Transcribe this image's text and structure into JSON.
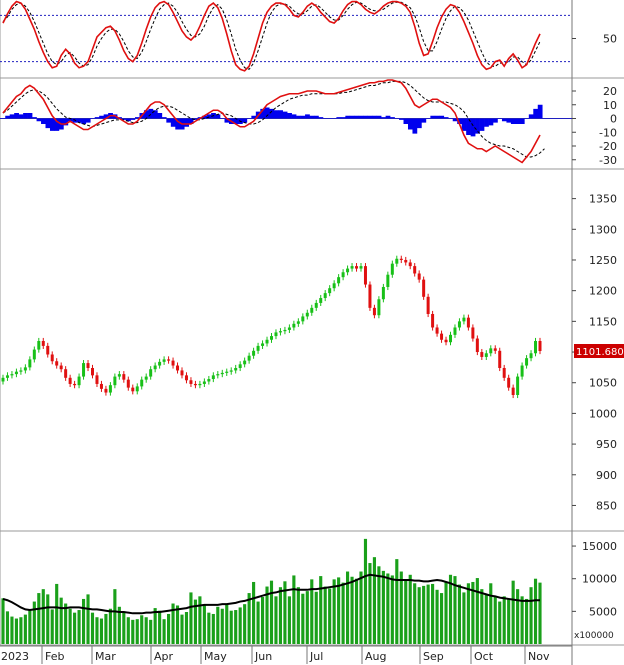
{
  "colors": {
    "up_candle": "#18c018",
    "down_candle": "#e01010",
    "volume_bar": "#1aa01a",
    "volume_ma": "#000000",
    "stoch_line": "#e01010",
    "macd_hist": "#0000ee",
    "macd_line": "#e01010",
    "signal_line": "#000000",
    "ref_line": "#2020c0",
    "price_tag_bg": "#cc0000",
    "price_tag_text": "#ffffff"
  },
  "x_axis": {
    "year_label": "2023",
    "months": [
      "Feb",
      "Mar",
      "Apr",
      "May",
      "Jun",
      "Jul",
      "Aug",
      "Sep",
      "Oct",
      "Nov"
    ]
  },
  "chart_data": [
    {
      "type": "line",
      "panel": "stochastic",
      "ylim": [
        0,
        100
      ],
      "ticks": [
        50
      ],
      "reference_levels": [
        20,
        80
      ],
      "series": [
        {
          "role": "k",
          "values": [
            70,
            82,
            92,
            98,
            96,
            88,
            75,
            62,
            46,
            32,
            20,
            12,
            14,
            28,
            36,
            30,
            18,
            12,
            14,
            20,
            36,
            52,
            58,
            64,
            66,
            60,
            48,
            34,
            24,
            20,
            28,
            44,
            62,
            78,
            90,
            96,
            98,
            94,
            84,
            72,
            60,
            52,
            48,
            54,
            66,
            80,
            92,
            96,
            90,
            76,
            56,
            34,
            16,
            10,
            8,
            14,
            30,
            50,
            70,
            84,
            92,
            96,
            96,
            94,
            88,
            80,
            78,
            84,
            92,
            96,
            92,
            84,
            78,
            72,
            70,
            76,
            86,
            94,
            98,
            98,
            94,
            88,
            84,
            82,
            86,
            92,
            96,
            98,
            98,
            96,
            92,
            84,
            66,
            44,
            28,
            30,
            46,
            64,
            78,
            88,
            94,
            92,
            84,
            72,
            58,
            44,
            28,
            16,
            10,
            12,
            20,
            22,
            14,
            24,
            30,
            22,
            12,
            16,
            30,
            44,
            56
          ]
        },
        {
          "role": "d",
          "values": [
            72,
            78,
            88,
            94,
            96,
            92,
            84,
            72,
            58,
            44,
            30,
            20,
            16,
            20,
            28,
            32,
            26,
            18,
            14,
            16,
            26,
            40,
            50,
            58,
            62,
            62,
            56,
            46,
            34,
            26,
            24,
            32,
            46,
            62,
            76,
            88,
            94,
            96,
            92,
            84,
            72,
            62,
            54,
            52,
            56,
            66,
            80,
            90,
            94,
            88,
            74,
            56,
            36,
            22,
            12,
            10,
            18,
            34,
            52,
            70,
            84,
            92,
            95,
            95,
            92,
            86,
            82,
            82,
            86,
            92,
            94,
            90,
            84,
            78,
            74,
            74,
            80,
            88,
            94,
            97,
            96,
            92,
            88,
            86,
            86,
            88,
            92,
            96,
            97,
            97,
            94,
            90,
            80,
            64,
            46,
            34,
            34,
            46,
            62,
            76,
            86,
            92,
            90,
            84,
            74,
            60,
            46,
            32,
            20,
            14,
            14,
            18,
            18,
            20,
            26,
            26,
            20,
            16,
            22,
            34,
            46
          ]
        }
      ]
    },
    {
      "type": "bar",
      "panel": "macd",
      "ylim": [
        -36,
        28
      ],
      "ticks": [
        20,
        10,
        0,
        -10,
        -20,
        -30
      ],
      "series": [
        {
          "role": "macd",
          "values": [
            4,
            8,
            12,
            16,
            18,
            22,
            24,
            22,
            18,
            14,
            8,
            2,
            -2,
            -4,
            -4,
            -2,
            -4,
            -6,
            -8,
            -8,
            -6,
            -4,
            -2,
            0,
            2,
            2,
            0,
            -2,
            -4,
            -4,
            -2,
            2,
            6,
            10,
            12,
            12,
            10,
            6,
            2,
            -2,
            -4,
            -4,
            -4,
            -2,
            0,
            2,
            4,
            6,
            6,
            4,
            0,
            -2,
            -4,
            -6,
            -6,
            -4,
            -2,
            2,
            6,
            10,
            12,
            14,
            16,
            17,
            18,
            18,
            18,
            19,
            20,
            20,
            20,
            19,
            18,
            18,
            18,
            19,
            20,
            21,
            22,
            23,
            24,
            25,
            26,
            26,
            27,
            27,
            28,
            28,
            27,
            26,
            22,
            16,
            10,
            8,
            10,
            12,
            14,
            14,
            12,
            10,
            8,
            4,
            -4,
            -12,
            -18,
            -20,
            -22,
            -22,
            -24,
            -22,
            -20,
            -22,
            -24,
            -26,
            -28,
            -30,
            -32,
            -28,
            -24,
            -18,
            -12
          ]
        },
        {
          "role": "signal",
          "values": [
            4,
            6,
            9,
            12,
            15,
            18,
            20,
            21,
            20,
            18,
            15,
            11,
            7,
            4,
            1,
            0,
            -1,
            -3,
            -4,
            -5,
            -6,
            -5,
            -4,
            -3,
            -2,
            -1,
            -1,
            -1,
            -2,
            -3,
            -3,
            -2,
            0,
            3,
            6,
            8,
            9,
            9,
            8,
            6,
            4,
            2,
            0,
            -1,
            -1,
            0,
            1,
            2,
            3,
            4,
            3,
            2,
            0,
            -2,
            -3,
            -4,
            -4,
            -3,
            -1,
            2,
            5,
            8,
            10,
            12,
            14,
            15,
            16,
            17,
            17,
            18,
            18,
            18,
            18,
            18,
            18,
            18,
            19,
            19,
            20,
            21,
            22,
            23,
            24,
            24,
            25,
            26,
            26,
            27,
            27,
            27,
            26,
            24,
            21,
            18,
            15,
            13,
            12,
            12,
            12,
            12,
            11,
            10,
            8,
            5,
            0,
            -5,
            -9,
            -13,
            -16,
            -18,
            -19,
            -20,
            -20,
            -21,
            -22,
            -24,
            -26,
            -28,
            -28,
            -27,
            -25,
            -22
          ]
        },
        {
          "role": "histogram",
          "values": [
            0,
            2,
            3,
            4,
            3,
            4,
            4,
            1,
            -2,
            -4,
            -7,
            -9,
            -9,
            -8,
            -5,
            -2,
            -3,
            -3,
            -4,
            -3,
            0,
            1,
            2,
            3,
            4,
            3,
            1,
            -1,
            -2,
            -1,
            1,
            4,
            6,
            7,
            6,
            4,
            1,
            -3,
            -6,
            -8,
            -8,
            -6,
            -4,
            -1,
            1,
            2,
            3,
            4,
            3,
            0,
            -3,
            -4,
            -4,
            -4,
            -3,
            0,
            2,
            5,
            7,
            8,
            7,
            6,
            6,
            5,
            4,
            3,
            2,
            2,
            3,
            2,
            2,
            1,
            0,
            0,
            0,
            1,
            1,
            2,
            2,
            2,
            2,
            2,
            2,
            2,
            2,
            1,
            2,
            1,
            0,
            -1,
            -4,
            -8,
            -11,
            -7,
            -3,
            0,
            2,
            2,
            2,
            1,
            0,
            -2,
            -4,
            -9,
            -12,
            -13,
            -11,
            -9,
            -6,
            -5,
            -3,
            0,
            -2,
            -3,
            -4,
            -4,
            -4,
            0,
            3,
            7,
            10
          ]
        }
      ]
    },
    {
      "type": "candlestick",
      "panel": "price",
      "ylim": [
        810,
        1395
      ],
      "ticks": [
        850,
        900,
        950,
        1000,
        1050,
        1100,
        1150,
        1200,
        1250,
        1300,
        1350
      ],
      "last_price_label": "1101.680",
      "series": [
        {
          "name": "close",
          "values": [
            1058,
            1062,
            1064,
            1068,
            1070,
            1075,
            1088,
            1104,
            1118,
            1110,
            1096,
            1085,
            1078,
            1072,
            1058,
            1048,
            1046,
            1060,
            1082,
            1074,
            1062,
            1048,
            1040,
            1034,
            1046,
            1060,
            1064,
            1055,
            1042,
            1036,
            1044,
            1055,
            1060,
            1072,
            1078,
            1084,
            1088,
            1086,
            1078,
            1070,
            1062,
            1054,
            1048,
            1046,
            1048,
            1052,
            1056,
            1062,
            1064,
            1066,
            1068,
            1070,
            1074,
            1080,
            1086,
            1094,
            1102,
            1110,
            1114,
            1120,
            1126,
            1132,
            1134,
            1136,
            1140,
            1146,
            1150,
            1158,
            1164,
            1172,
            1180,
            1188,
            1196,
            1204,
            1212,
            1222,
            1230,
            1236,
            1240,
            1236,
            1240,
            1210,
            1172,
            1160,
            1186,
            1206,
            1226,
            1244,
            1252,
            1250,
            1246,
            1240,
            1228,
            1218,
            1190,
            1162,
            1140,
            1130,
            1120,
            1116,
            1128,
            1140,
            1150,
            1156,
            1140,
            1122,
            1100,
            1092,
            1098,
            1106,
            1102,
            1074,
            1058,
            1042,
            1030,
            1060,
            1078,
            1090,
            1098,
            1118,
            1101.68
          ]
        }
      ]
    },
    {
      "type": "bar",
      "panel": "volume",
      "ylim": [
        0,
        17000
      ],
      "ticks": [
        5000,
        10000,
        15000
      ],
      "unit_label": "x100000",
      "series": [
        {
          "role": "volume",
          "values": [
            7000,
            5000,
            4200,
            3900,
            4100,
            4500,
            5200,
            6500,
            7800,
            8400,
            7600,
            5300,
            9200,
            7100,
            6200,
            5400,
            4800,
            5200,
            6900,
            7600,
            4800,
            4100,
            3900,
            4600,
            5400,
            8400,
            5700,
            4900,
            4100,
            3700,
            3800,
            4400,
            4100,
            3700,
            5500,
            5100,
            3800,
            4600,
            6200,
            5900,
            4500,
            4900,
            7900,
            6800,
            7300,
            6100,
            4800,
            4600,
            5700,
            5400,
            6200,
            5100,
            5200,
            5600,
            6100,
            7800,
            9500,
            6500,
            7200,
            8800,
            9700,
            7300,
            8700,
            9600,
            7300,
            10500,
            8700,
            7700,
            8100,
            9900,
            8000,
            10400,
            8800,
            8500,
            9900,
            10200,
            9400,
            11100,
            10300,
            10000,
            11100,
            16100,
            12400,
            13300,
            11900,
            11200,
            10800,
            10500,
            13000,
            11100,
            9700,
            10600,
            9300,
            8700,
            8900,
            9100,
            9200,
            8300,
            7800,
            9500,
            10600,
            10400,
            9100,
            7900,
            9300,
            9500,
            10100,
            8400,
            7600,
            9300,
            7300,
            6500,
            7300,
            6900,
            9700,
            8400,
            7300,
            6900,
            8700,
            10000,
            9400
          ]
        },
        {
          "role": "ma",
          "values": [
            6900,
            6700,
            6400,
            6000,
            5600,
            5300,
            5200,
            5300,
            5400,
            5500,
            5600,
            5600,
            5600,
            5500,
            5500,
            5600,
            5600,
            5600,
            5500,
            5400,
            5300,
            5300,
            5200,
            5100,
            5000,
            5000,
            4900,
            4900,
            4800,
            4700,
            4700,
            4700,
            4800,
            4800,
            4900,
            4900,
            5000,
            5100,
            5200,
            5300,
            5400,
            5500,
            5700,
            5800,
            5900,
            6000,
            6000,
            6000,
            6000,
            6100,
            6100,
            6200,
            6300,
            6500,
            6600,
            6800,
            7000,
            7200,
            7400,
            7600,
            7800,
            7900,
            8100,
            8200,
            8300,
            8400,
            8300,
            8300,
            8300,
            8400,
            8400,
            8500,
            8600,
            8700,
            8800,
            8900,
            9100,
            9300,
            9500,
            9800,
            10100,
            10400,
            10600,
            10500,
            10400,
            10300,
            10100,
            9900,
            9800,
            9800,
            9800,
            9800,
            9700,
            9700,
            9600,
            9600,
            9700,
            9800,
            9700,
            9500,
            9300,
            9000,
            8800,
            8600,
            8400,
            8200,
            8000,
            7800,
            7600,
            7400,
            7300,
            7100,
            7000,
            6900,
            6800,
            6700,
            6600,
            6600,
            6600,
            6700,
            6700
          ]
        }
      ]
    }
  ]
}
